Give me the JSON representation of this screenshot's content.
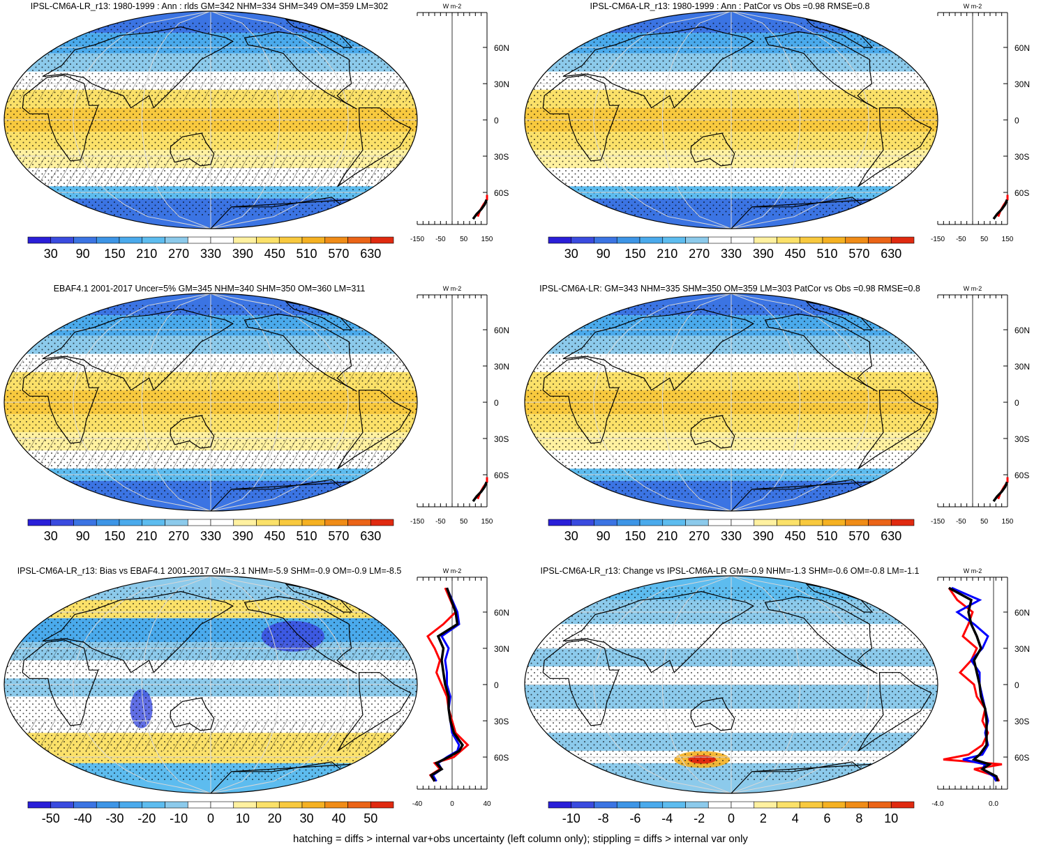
{
  "footnote": "hatching = diffs > internal var+obs uncertainty (left column only); stippling = diffs > internal var only",
  "colors": {
    "palette_16": [
      "#2a1fd8",
      "#3a4bdf",
      "#3b74e3",
      "#3d95e6",
      "#4aaaec",
      "#5dbcef",
      "#8ccaeb",
      "#ffffff",
      "#ffffff",
      "#fff1a0",
      "#fbe169",
      "#f8c93e",
      "#f5b122",
      "#f08c17",
      "#eb6417",
      "#e02a10"
    ],
    "coast": "#000000",
    "grid": "#d8d8d8",
    "profile_red": "#ff0000",
    "profile_blue": "#0000ff",
    "profile_black": "#000000"
  },
  "chart_data": [
    {
      "type": "heatmap",
      "title": "IPSL-CM6A-LR_r13: 1980-1999 : Ann : rlds GM=342 NHM=334 SHM=349 OM=359 LM=302",
      "projection": "robinson",
      "colorbar": {
        "ticks": [
          "30",
          "90",
          "150",
          "210",
          "270",
          "330",
          "390",
          "450",
          "510",
          "570",
          "630"
        ],
        "levels": [
          30,
          630
        ]
      },
      "field_kind": "absolute",
      "hatching": true,
      "stippling": true,
      "profile": {
        "units": "W m-2",
        "xlim": [
          -150,
          150
        ],
        "xticks": [
          "-150",
          "-50",
          "50",
          "150"
        ],
        "yticks": [
          "60N",
          "30N",
          "0",
          "30S",
          "60S"
        ],
        "series": [
          "red",
          "black"
        ]
      }
    },
    {
      "type": "heatmap",
      "title": "IPSL-CM6A-LR_r13: 1980-1999 : Ann : PatCor vs Obs =0.98 RMSE=0.8",
      "projection": "robinson",
      "colorbar": {
        "ticks": [
          "30",
          "90",
          "150",
          "210",
          "270",
          "330",
          "390",
          "450",
          "510",
          "570",
          "630"
        ],
        "levels": [
          30,
          630
        ]
      },
      "field_kind": "absolute",
      "hatching": false,
      "stippling": true,
      "profile": {
        "units": "W m-2",
        "xlim": [
          -150,
          150
        ],
        "xticks": [
          "-150",
          "-50",
          "50",
          "150"
        ],
        "yticks": [
          "60N",
          "30N",
          "0",
          "30S",
          "60S"
        ],
        "series": [
          "red",
          "black"
        ]
      }
    },
    {
      "type": "heatmap",
      "title": "EBAF4.1 2001-2017 Uncer=5% GM=345 NHM=340 SHM=350 OM=360 LM=311",
      "projection": "robinson",
      "colorbar": {
        "ticks": [
          "30",
          "90",
          "150",
          "210",
          "270",
          "330",
          "390",
          "450",
          "510",
          "570",
          "630"
        ],
        "levels": [
          30,
          630
        ]
      },
      "field_kind": "absolute",
      "hatching": true,
      "stippling": true,
      "profile": {
        "units": "W m-2",
        "xlim": [
          -150,
          150
        ],
        "xticks": [
          "-150",
          "-50",
          "50",
          "150"
        ],
        "yticks": [
          "60N",
          "30N",
          "0",
          "30S",
          "60S"
        ],
        "series": [
          "red",
          "black"
        ]
      }
    },
    {
      "type": "heatmap",
      "title": "IPSL-CM6A-LR: GM=343 NHM=335 SHM=350 OM=359 LM=303 PatCor vs Obs =0.98 RMSE=0.8",
      "projection": "robinson",
      "colorbar": {
        "ticks": [
          "30",
          "90",
          "150",
          "210",
          "270",
          "330",
          "390",
          "450",
          "510",
          "570",
          "630"
        ],
        "levels": [
          30,
          630
        ]
      },
      "field_kind": "absolute",
      "hatching": false,
      "stippling": true,
      "profile": {
        "units": "W m-2",
        "xlim": [
          -150,
          150
        ],
        "xticks": [
          "-150",
          "-50",
          "50",
          "150"
        ],
        "yticks": [
          "60N",
          "30N",
          "0",
          "30S",
          "60S"
        ],
        "series": [
          "red",
          "black"
        ]
      }
    },
    {
      "type": "heatmap",
      "title": "IPSL-CM6A-LR_r13: Bias vs EBAF4.1 2001-2017 GM=-3.1 NHM=-5.9 SHM=-0.9 OM=-0.9 LM=-8.5",
      "projection": "robinson",
      "colorbar": {
        "ticks": [
          "-50",
          "-40",
          "-30",
          "-20",
          "-10",
          "0",
          "10",
          "20",
          "30",
          "40",
          "50"
        ],
        "levels": [
          -50,
          50
        ]
      },
      "field_kind": "bias",
      "hatching": true,
      "stippling": true,
      "profile": {
        "units": "W m-2",
        "xlim": [
          -40,
          40
        ],
        "xticks": [
          "-40",
          "0",
          "40"
        ],
        "yticks": [
          "60N",
          "30N",
          "0",
          "30S",
          "60S"
        ],
        "series": [
          "red",
          "blue",
          "black"
        ]
      }
    },
    {
      "type": "heatmap",
      "title": "IPSL-CM6A-LR_r13: Change vs IPSL-CM6A-LR GM=-0.9 NHM=-1.3 SHM=-0.6 OM=-0.8 LM=-1.1",
      "projection": "robinson",
      "colorbar": {
        "ticks": [
          "-10",
          "-8",
          "-6",
          "-4",
          "-2",
          "0",
          "2",
          "4",
          "6",
          "8",
          "10"
        ],
        "levels": [
          -10,
          10
        ]
      },
      "field_kind": "change",
      "hatching": false,
      "stippling": true,
      "profile": {
        "units": "W m-2",
        "xlim": [
          -4,
          1
        ],
        "xticks": [
          "-4.0",
          "0.0"
        ],
        "yticks": [
          "60N",
          "30N",
          "0",
          "30S",
          "60S"
        ],
        "series": [
          "red",
          "blue",
          "black"
        ]
      }
    }
  ]
}
